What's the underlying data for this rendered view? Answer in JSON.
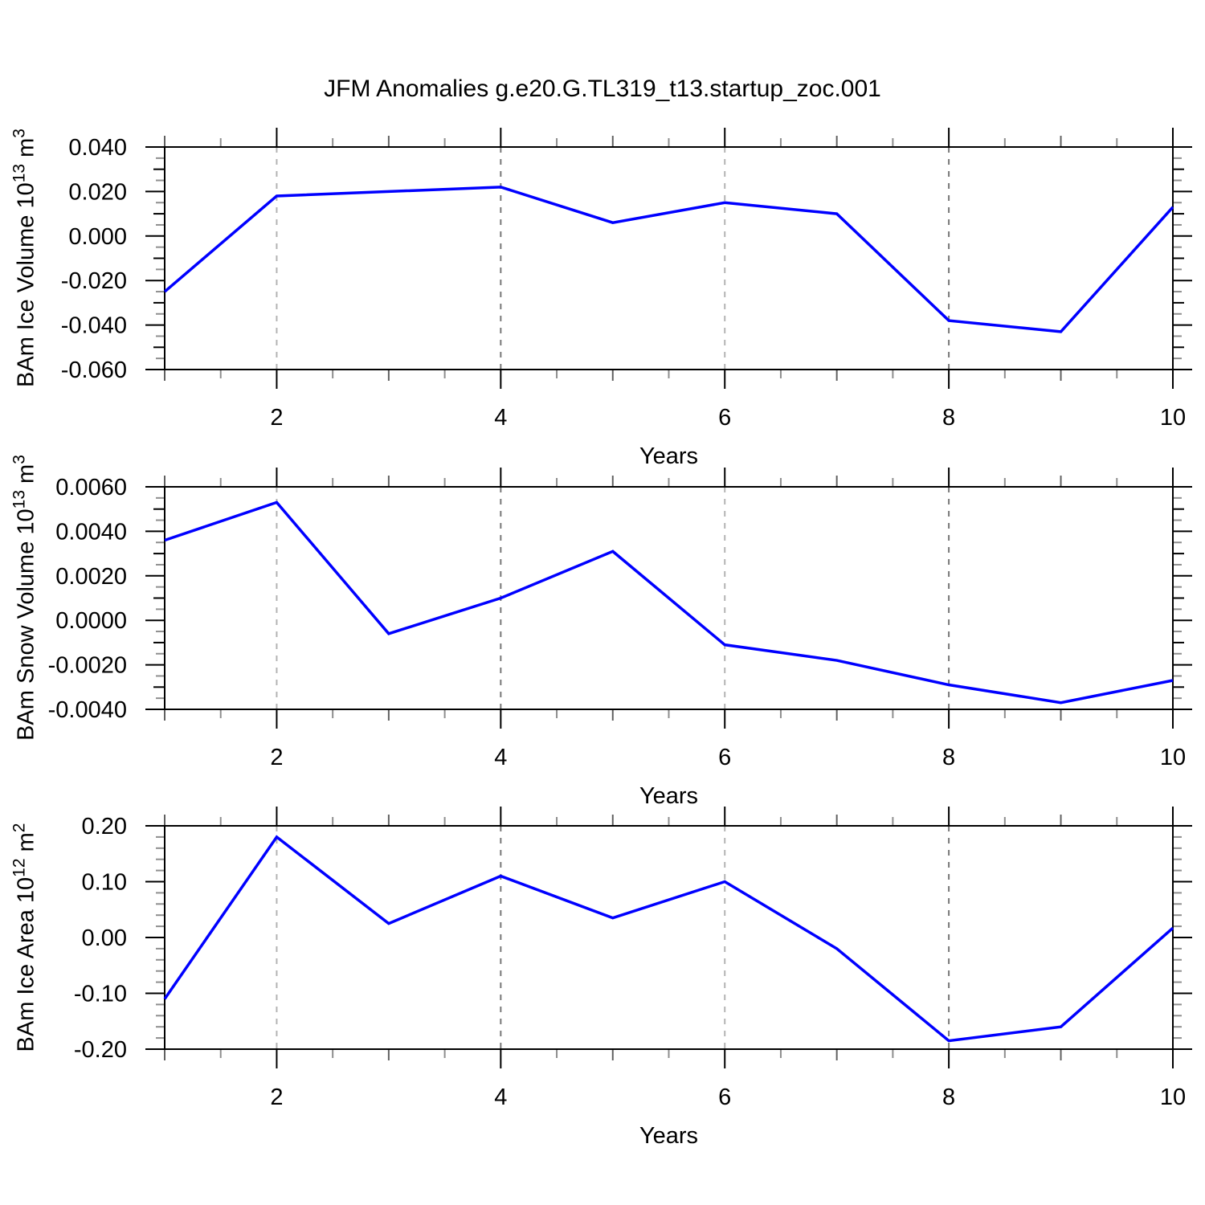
{
  "title": "JFM Anomalies g.e20.G.TL319_t13.startup_zoc.001",
  "colors": {
    "background": "#ffffff",
    "line": "#0000ff",
    "frame": "#000000",
    "text": "#000000",
    "grid_light": "#b3b3b3",
    "grid_dark": "#787878",
    "tick_mid": "#606060",
    "tick_minor": "#8e8e8e"
  },
  "chart_data": [
    {
      "type": "line",
      "name": "ice-volume",
      "ylabel": {
        "text": "BAm Ice Volume 10",
        "exp": "13",
        "unit": " m",
        "unit_exp": "3"
      },
      "xlabel": "Years",
      "x": [
        1,
        2,
        3,
        4,
        5,
        6,
        7,
        8,
        9,
        10
      ],
      "values": [
        -0.025,
        0.018,
        0.02,
        0.022,
        0.006,
        0.015,
        0.01,
        -0.038,
        -0.043,
        0.013
      ],
      "xlim": [
        1,
        10
      ],
      "ylim": [
        -0.06,
        0.04
      ],
      "ytick_major": 0.02,
      "ytick_minor": 0.005,
      "ytick_labels": [
        "0.040",
        "0.020",
        "0.000",
        "-0.020",
        "-0.040",
        "-0.060"
      ],
      "xticks_labeled_at": [
        2,
        4,
        6,
        8,
        10
      ],
      "xtick_labels": [
        "2",
        "4",
        "6",
        "8",
        "10"
      ],
      "xtick_minor_step": 0.5,
      "grid": "vertical-dashed",
      "legend": "none",
      "gridlines": [
        {
          "x": 2,
          "shade": "light"
        },
        {
          "x": 4,
          "shade": "dark"
        },
        {
          "x": 6,
          "shade": "light"
        },
        {
          "x": 8,
          "shade": "dark"
        }
      ]
    },
    {
      "type": "line",
      "name": "snow-volume",
      "ylabel": {
        "text": "BAm Snow Volume 10",
        "exp": "13",
        "unit": " m",
        "unit_exp": "3"
      },
      "xlabel": "Years",
      "x": [
        1,
        2,
        3,
        4,
        5,
        6,
        7,
        8,
        9,
        10
      ],
      "values": [
        0.0036,
        0.0053,
        -0.0006,
        0.001,
        0.0031,
        -0.0011,
        -0.0018,
        -0.0029,
        -0.0037,
        -0.0027
      ],
      "xlim": [
        1,
        10
      ],
      "ylim": [
        -0.004,
        0.006
      ],
      "ytick_major": 0.002,
      "ytick_minor": 0.0005,
      "ytick_labels": [
        "0.0060",
        "0.0040",
        "0.0020",
        "0.0000",
        "-0.0020",
        "-0.0040"
      ],
      "xticks_labeled_at": [
        2,
        4,
        6,
        8,
        10
      ],
      "xtick_labels": [
        "2",
        "4",
        "6",
        "8",
        "10"
      ],
      "xtick_minor_step": 0.5,
      "grid": "vertical-dashed",
      "legend": "none",
      "gridlines": [
        {
          "x": 2,
          "shade": "light"
        },
        {
          "x": 4,
          "shade": "dark"
        },
        {
          "x": 6,
          "shade": "light"
        },
        {
          "x": 8,
          "shade": "dark"
        }
      ]
    },
    {
      "type": "line",
      "name": "ice-area",
      "ylabel": {
        "text": "BAm Ice Area 10",
        "exp": "12",
        "unit": " m",
        "unit_exp": "2"
      },
      "xlabel": "Years",
      "x": [
        1,
        2,
        3,
        4,
        5,
        6,
        7,
        8,
        9,
        10
      ],
      "values": [
        -0.11,
        0.18,
        0.025,
        0.11,
        0.035,
        0.1,
        -0.02,
        -0.185,
        -0.16,
        0.017
      ],
      "xlim": [
        1,
        10
      ],
      "ylim": [
        -0.2,
        0.2
      ],
      "ytick_major": 0.1,
      "ytick_minor": 0.02,
      "ytick_labels": [
        "0.20",
        "0.10",
        "0.00",
        "-0.10",
        "-0.20"
      ],
      "xticks_labeled_at": [
        2,
        4,
        6,
        8,
        10
      ],
      "xtick_labels": [
        "2",
        "4",
        "6",
        "8",
        "10"
      ],
      "xtick_minor_step": 0.5,
      "grid": "vertical-dashed",
      "legend": "none",
      "gridlines": [
        {
          "x": 2,
          "shade": "light"
        },
        {
          "x": 4,
          "shade": "dark"
        },
        {
          "x": 6,
          "shade": "light"
        },
        {
          "x": 8,
          "shade": "dark"
        }
      ]
    }
  ]
}
